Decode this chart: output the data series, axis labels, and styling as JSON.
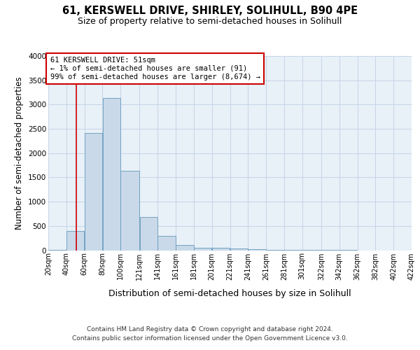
{
  "title": "61, KERSWELL DRIVE, SHIRLEY, SOLIHULL, B90 4PE",
  "subtitle": "Size of property relative to semi-detached houses in Solihull",
  "xlabel": "Distribution of semi-detached houses by size in Solihull",
  "ylabel": "Number of semi-detached properties",
  "footer_line1": "Contains HM Land Registry data © Crown copyright and database right 2024.",
  "footer_line2": "Contains public sector information licensed under the Open Government Licence v3.0.",
  "bar_left_edges": [
    20,
    40,
    60,
    80,
    100,
    121,
    141,
    161,
    181,
    201,
    221,
    241,
    261,
    281,
    301,
    322,
    342,
    362,
    382,
    402
  ],
  "bar_widths": [
    20,
    20,
    20,
    20,
    21,
    20,
    20,
    20,
    20,
    20,
    20,
    20,
    20,
    20,
    21,
    20,
    20,
    20,
    20,
    20
  ],
  "bar_heights": [
    5,
    400,
    2420,
    3130,
    1640,
    680,
    300,
    115,
    55,
    55,
    40,
    15,
    5,
    3,
    2,
    1,
    1,
    0,
    0,
    0
  ],
  "bar_facecolor": "#c9d9e9",
  "bar_edgecolor": "#6699bb",
  "tick_labels": [
    "20sqm",
    "40sqm",
    "60sqm",
    "80sqm",
    "100sqm",
    "121sqm",
    "141sqm",
    "161sqm",
    "181sqm",
    "201sqm",
    "221sqm",
    "241sqm",
    "261sqm",
    "281sqm",
    "301sqm",
    "322sqm",
    "342sqm",
    "362sqm",
    "382sqm",
    "402sqm",
    "422sqm"
  ],
  "tick_positions": [
    20,
    40,
    60,
    80,
    100,
    121,
    141,
    161,
    181,
    201,
    221,
    241,
    261,
    281,
    301,
    322,
    342,
    362,
    382,
    402,
    422
  ],
  "ytick_labels": [
    "0",
    "500",
    "1000",
    "1500",
    "2000",
    "2500",
    "3000",
    "3500",
    "4000"
  ],
  "ytick_positions": [
    0,
    500,
    1000,
    1500,
    2000,
    2500,
    3000,
    3500,
    4000
  ],
  "ylim": [
    0,
    4000
  ],
  "xlim": [
    20,
    422
  ],
  "property_size": 51,
  "vline_color": "#cc0000",
  "annotation_text": "61 KERSWELL DRIVE: 51sqm\n← 1% of semi-detached houses are smaller (91)\n99% of semi-detached houses are larger (8,674) →",
  "annotation_box_edgecolor": "#cc0000",
  "annotation_box_facecolor": "white",
  "grid_color": "#c5d5e5",
  "background_color": "#e8f0f8",
  "title_fontsize": 10.5,
  "subtitle_fontsize": 9,
  "xlabel_fontsize": 9,
  "ylabel_fontsize": 8.5,
  "tick_fontsize": 7,
  "annotation_fontsize": 7.5,
  "footer_fontsize": 6.5
}
